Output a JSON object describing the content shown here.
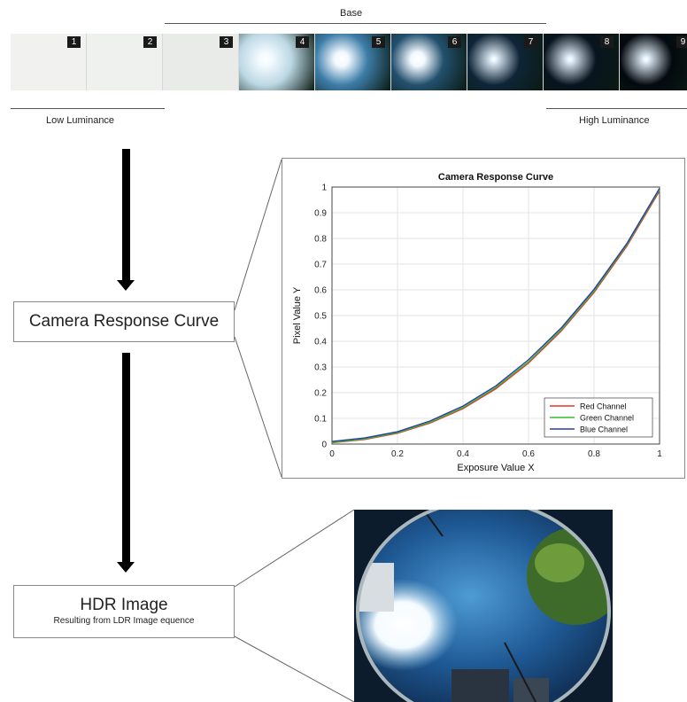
{
  "top_labels": {
    "base": "Base",
    "low": "Low Luminance",
    "high": "High Luminance"
  },
  "frames": [
    {
      "label": "1",
      "color": "#f1f2ef"
    },
    {
      "label": "2",
      "color": "#eff1ee"
    },
    {
      "label": "3",
      "color": "#e9ebe8"
    },
    {
      "label": "4",
      "color": "#bcd8e4"
    },
    {
      "label": "5",
      "color": "#3d7da8"
    },
    {
      "label": "6",
      "color": "#23506e"
    },
    {
      "label": "7",
      "color": "#0f2537"
    },
    {
      "label": "8",
      "color": "#08141e"
    },
    {
      "label": "9",
      "color": "#040a10"
    }
  ],
  "boxes": {
    "crc": "Camera Response Curve",
    "hdr_title": "HDR Image",
    "hdr_sub": "Resulting from LDR Image equence"
  },
  "chart_data": {
    "type": "line",
    "title": "Camera Response Curve",
    "xlabel": "Exposure Value X",
    "ylabel": "Pixel Value Y",
    "xlim": [
      0,
      1
    ],
    "ylim": [
      0,
      1
    ],
    "xticks": [
      "0",
      "0.2",
      "0.4",
      "0.6",
      "0.8",
      "1"
    ],
    "yticks": [
      "0",
      "0.1",
      "0.2",
      "0.3",
      "0.4",
      "0.5",
      "0.6",
      "0.7",
      "0.8",
      "0.9",
      "1"
    ],
    "grid": true,
    "legend_position": "bottom-right",
    "x": [
      0,
      0.1,
      0.2,
      0.3,
      0.4,
      0.5,
      0.6,
      0.7,
      0.8,
      0.9,
      1.0
    ],
    "series": [
      {
        "name": "Red Channel",
        "color": "#e8302a",
        "values": [
          0.005,
          0.018,
          0.042,
          0.082,
          0.138,
          0.215,
          0.315,
          0.44,
          0.59,
          0.77,
          0.985
        ]
      },
      {
        "name": "Green Channel",
        "color": "#3cb832",
        "values": [
          0.006,
          0.02,
          0.044,
          0.085,
          0.142,
          0.22,
          0.32,
          0.445,
          0.595,
          0.775,
          0.99
        ]
      },
      {
        "name": "Blue Channel",
        "color": "#2a3aa8",
        "values": [
          0.01,
          0.024,
          0.048,
          0.09,
          0.148,
          0.226,
          0.328,
          0.452,
          0.602,
          0.78,
          0.995
        ]
      }
    ]
  }
}
